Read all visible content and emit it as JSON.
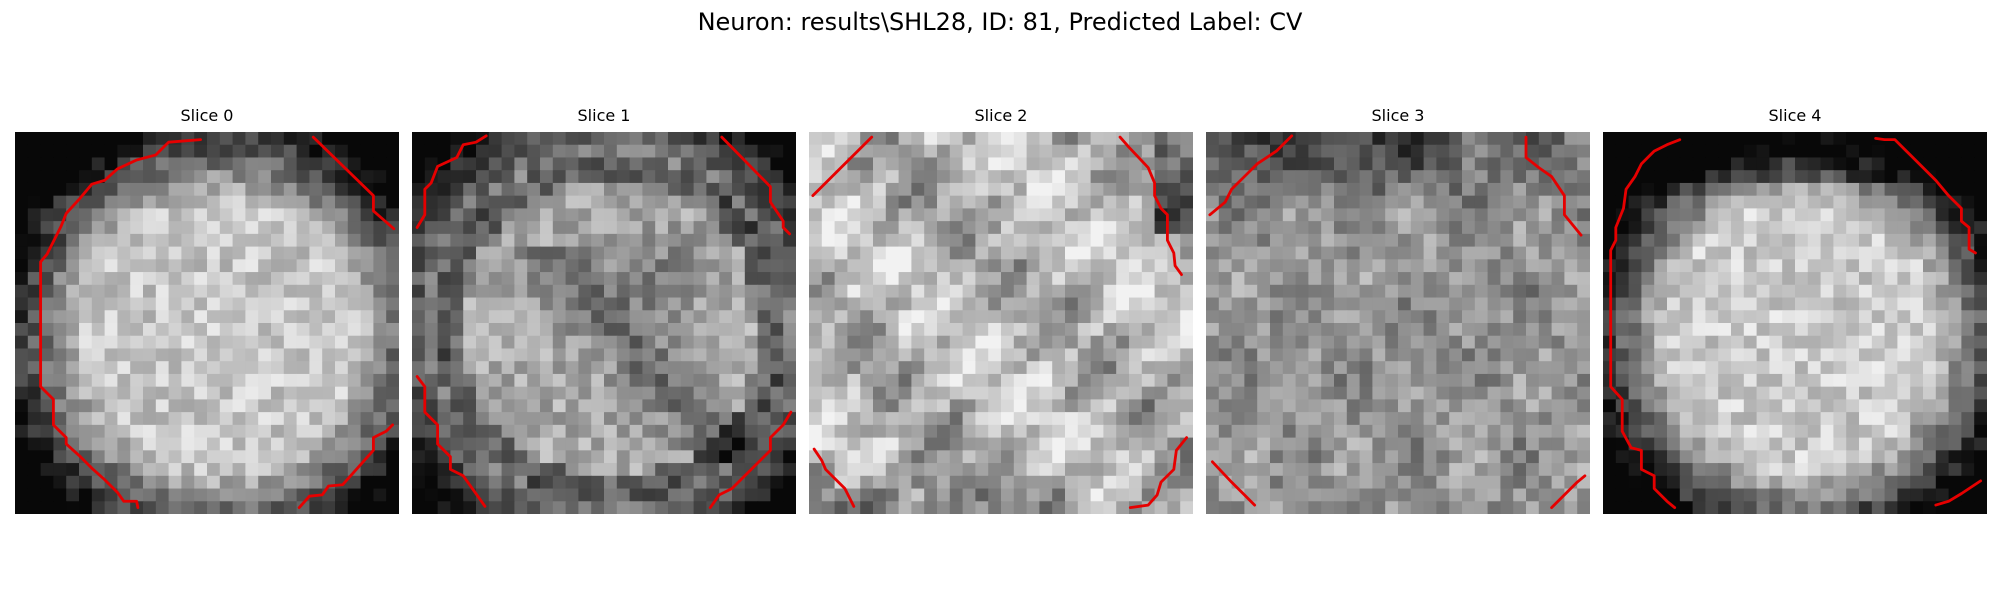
{
  "figure": {
    "title": "Neuron: results\\SHL28, ID: 81, Predicted Label: CV"
  },
  "panels": [
    {
      "title": "Slice 0",
      "contour_color": "#e60000"
    },
    {
      "title": "Slice 1",
      "contour_color": "#e60000"
    },
    {
      "title": "Slice 2",
      "contour_color": "#e60000"
    },
    {
      "title": "Slice 3",
      "contour_color": "#e60000"
    },
    {
      "title": "Slice 4",
      "contour_color": "#e60000"
    }
  ]
}
